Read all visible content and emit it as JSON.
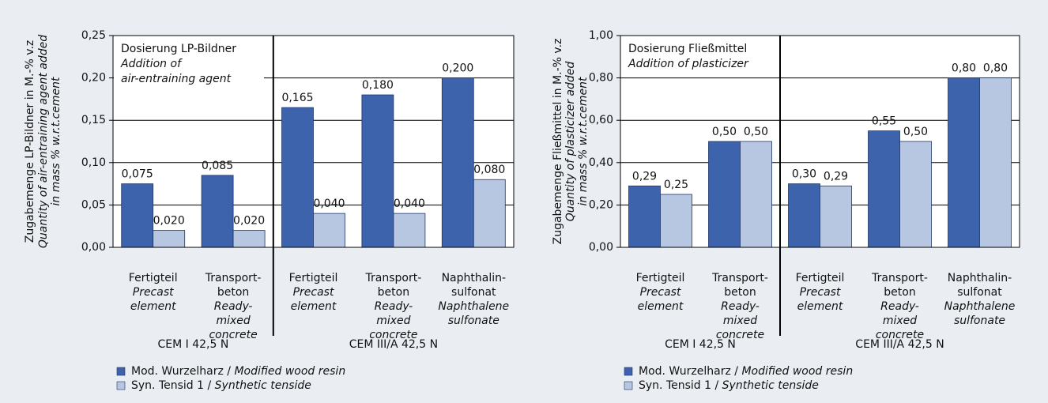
{
  "chart_data": [
    {
      "type": "bar",
      "ylabel": [
        "Zugabemenge LP-Bildner in M.-% v.z",
        "Quantity of air-entraining agent added",
        "in mass % w.r.t.cement"
      ],
      "annotation": [
        "Dosierung LP-Bildner",
        "Addition of",
        "air-entraining agent"
      ],
      "groups": [
        {
          "label": "CEM I 42,5 N",
          "categories": [
            {
              "de": [
                "Fertigteil"
              ],
              "en": [
                "Precast",
                "element"
              ]
            },
            {
              "de": [
                "Transport-",
                "beton"
              ],
              "en": [
                "Ready-",
                "mixed",
                "concrete"
              ]
            }
          ]
        },
        {
          "label": "CEM III/A 42,5 N",
          "categories": [
            {
              "de": [
                "Fertigteil"
              ],
              "en": [
                "Precast",
                "element"
              ]
            },
            {
              "de": [
                "Transport-",
                "beton"
              ],
              "en": [
                "Ready-",
                "mixed",
                "concrete"
              ]
            },
            {
              "de": [
                "Naphthalin-",
                "sulfonat"
              ],
              "en": [
                "Naphthalene",
                "sulfonate"
              ]
            }
          ]
        }
      ],
      "series": [
        {
          "name": "Mod. Wurzelharz / Modified wood resin",
          "color": "#3d63ad",
          "values": [
            0.075,
            0.085,
            0.165,
            0.18,
            0.2
          ],
          "value_labels": [
            "0,075",
            "0,085",
            "0,165",
            "0,180",
            "0,200"
          ]
        },
        {
          "name": "Syn. Tensid 1 / Synthetic tenside",
          "color": "#b7c6e1",
          "values": [
            0.02,
            0.02,
            0.04,
            0.04,
            0.08
          ],
          "value_labels": [
            "0,020",
            "0,020",
            "0,040",
            "0,040",
            "0,080"
          ]
        }
      ],
      "ylim": [
        0,
        0.25
      ],
      "yticks": [
        {
          "value": 0,
          "label": "0,00"
        },
        {
          "value": 0.05,
          "label": "0,05"
        },
        {
          "value": 0.1,
          "label": "0,10"
        },
        {
          "value": 0.15,
          "label": "0,15"
        },
        {
          "value": 0.2,
          "label": "0,20"
        },
        {
          "value": 0.25,
          "label": "0,25"
        }
      ],
      "grid": true
    },
    {
      "type": "bar",
      "ylabel": [
        "Zugabemenge Fließmittel in M.-% v.z",
        "Quantity of plasticizer added",
        "in mass % w.r.t.cement"
      ],
      "annotation": [
        "Dosierung Fließmittel",
        "Addition of plasticizer"
      ],
      "groups": [
        {
          "label": "CEM I 42,5 N",
          "categories": [
            {
              "de": [
                "Fertigteil"
              ],
              "en": [
                "Precast",
                "element"
              ]
            },
            {
              "de": [
                "Transport-",
                "beton"
              ],
              "en": [
                "Ready-",
                "mixed",
                "concrete"
              ]
            }
          ]
        },
        {
          "label": "CEM III/A 42,5 N",
          "categories": [
            {
              "de": [
                "Fertigteil"
              ],
              "en": [
                "Precast",
                "element"
              ]
            },
            {
              "de": [
                "Transport-",
                "beton"
              ],
              "en": [
                "Ready-",
                "mixed",
                "concrete"
              ]
            },
            {
              "de": [
                "Naphthalin-",
                "sulfonat"
              ],
              "en": [
                "Naphthalene",
                "sulfonate"
              ]
            }
          ]
        }
      ],
      "series": [
        {
          "name": "Mod. Wurzelharz / Modified wood resin",
          "color": "#3d63ad",
          "values": [
            0.29,
            0.5,
            0.3,
            0.55,
            0.8
          ],
          "value_labels": [
            "0,29",
            "0,50",
            "0,30",
            "0,55",
            "0,80"
          ]
        },
        {
          "name": "Syn. Tensid 1 / Synthetic tenside",
          "color": "#b7c6e1",
          "values": [
            0.25,
            0.5,
            0.29,
            0.5,
            0.8
          ],
          "value_labels": [
            "0,25",
            "0,50",
            "0,29",
            "0,50",
            "0,80"
          ]
        }
      ],
      "ylim": [
        0,
        1
      ],
      "yticks": [
        {
          "value": 0,
          "label": "0,00"
        },
        {
          "value": 0.2,
          "label": "0,20"
        },
        {
          "value": 0.4,
          "label": "0,40"
        },
        {
          "value": 0.6,
          "label": "0,60"
        },
        {
          "value": 0.8,
          "label": "0,80"
        },
        {
          "value": 1,
          "label": "1,00"
        }
      ],
      "grid": true
    }
  ]
}
